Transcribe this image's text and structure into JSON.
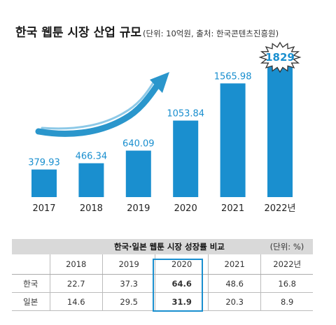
{
  "chart_data": {
    "type": "bar",
    "title": "한국 웹툰 시장 산업 규모",
    "subtitle": "(단위: 10억원, 출처: 한국콘텐츠진흥원)",
    "categories": [
      "2017",
      "2018",
      "2019",
      "2020",
      "2021",
      "2022년"
    ],
    "values": [
      379.93,
      466.34,
      640.09,
      1053.84,
      1565.98,
      1829
    ],
    "value_labels": [
      "379.93",
      "466.34",
      "640.09",
      "1053.84",
      "1565.98",
      "1829"
    ],
    "ylim": [
      0,
      1829
    ],
    "grid": false,
    "bar_color": "#1a8fcf",
    "arrow_color": "#2a96cc"
  },
  "table": {
    "title": "한국·일본 웹툰 시장 성장률 비교",
    "unit": "(단위: %)",
    "years": [
      "2018",
      "2019",
      "2020",
      "2021",
      "2022년"
    ],
    "rows": [
      {
        "label": "한국",
        "values": [
          "22.7",
          "37.3",
          "64.6",
          "48.6",
          "16.8"
        ]
      },
      {
        "label": "일본",
        "values": [
          "14.6",
          "29.5",
          "31.9",
          "20.3",
          "8.9"
        ]
      }
    ],
    "highlight_year": "2020",
    "highlight_color": "#1a8fcf"
  }
}
